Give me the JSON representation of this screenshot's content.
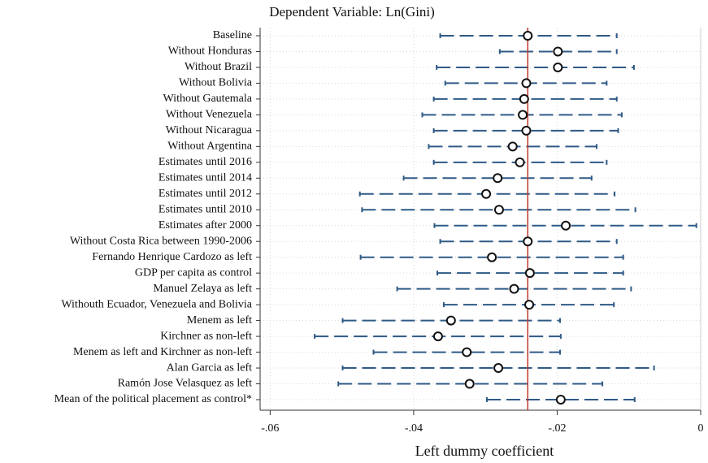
{
  "chart_data": {
    "type": "coefplot",
    "title": "Dependent Variable: Ln(Gini)",
    "x_label": "Left dummy coefficient",
    "categories": [
      "Baseline",
      "Without Honduras",
      "Without Brazil",
      "Without Bolivia",
      "Without Gautemala",
      "Without Venezuela",
      "Without Nicaragua",
      "Without Argentina",
      "Estimates until 2016",
      "Estimates until 2014",
      "Estimates until 2012",
      "Estimates until 2010",
      "Estimates after 2000",
      "Without Costa Rica between 1990-2006",
      "Fernando Henrique Cardozo as left",
      "GDP per capita as control",
      "Manuel Zelaya as left",
      "Withouth Ecuador, Venezuela and Bolivia",
      "Menem as left",
      "Kirchner as non-left",
      "Menem as left and Kirchner as non-left",
      "Alan Garcia as left",
      "Ramón Jose Velasquez as left",
      "Mean of the political placement as control*"
    ],
    "estimates": [
      -0.0241,
      -0.0199,
      -0.0199,
      -0.0243,
      -0.0246,
      -0.0248,
      -0.0243,
      -0.0262,
      -0.0252,
      -0.0283,
      -0.0299,
      -0.0281,
      -0.0188,
      -0.0241,
      -0.0291,
      -0.0238,
      -0.026,
      -0.0239,
      -0.0348,
      -0.0366,
      -0.0326,
      -0.0282,
      -0.0322,
      -0.0195
    ],
    "ci_low": [
      -0.0363,
      -0.028,
      -0.0368,
      -0.0356,
      -0.0372,
      -0.0388,
      -0.0372,
      -0.0379,
      -0.0372,
      -0.0414,
      -0.0475,
      -0.0472,
      -0.0371,
      -0.0363,
      -0.0474,
      -0.0367,
      -0.0423,
      -0.0358,
      -0.0499,
      -0.0538,
      -0.0456,
      -0.0499,
      -0.0505,
      -0.0298
    ],
    "ci_high": [
      -0.0117,
      -0.0117,
      -0.0093,
      -0.0131,
      -0.0117,
      -0.011,
      -0.0115,
      -0.0145,
      -0.0131,
      -0.0152,
      -0.012,
      -0.0091,
      -0.0006,
      -0.0117,
      -0.0108,
      -0.0108,
      -0.0097,
      -0.0121,
      -0.0196,
      -0.0195,
      -0.0196,
      -0.0065,
      -0.0137,
      -0.0092
    ],
    "reference_line": -0.0241,
    "xlim": [
      -0.0614,
      0
    ],
    "xticks": [
      {
        "value": -0.06,
        "label": "-.06"
      },
      {
        "value": -0.04,
        "label": "-.04"
      },
      {
        "value": -0.02,
        "label": "-.02"
      },
      0
    ],
    "grid": true,
    "color": "#2f5a86",
    "reference_color": "#c0392b"
  }
}
